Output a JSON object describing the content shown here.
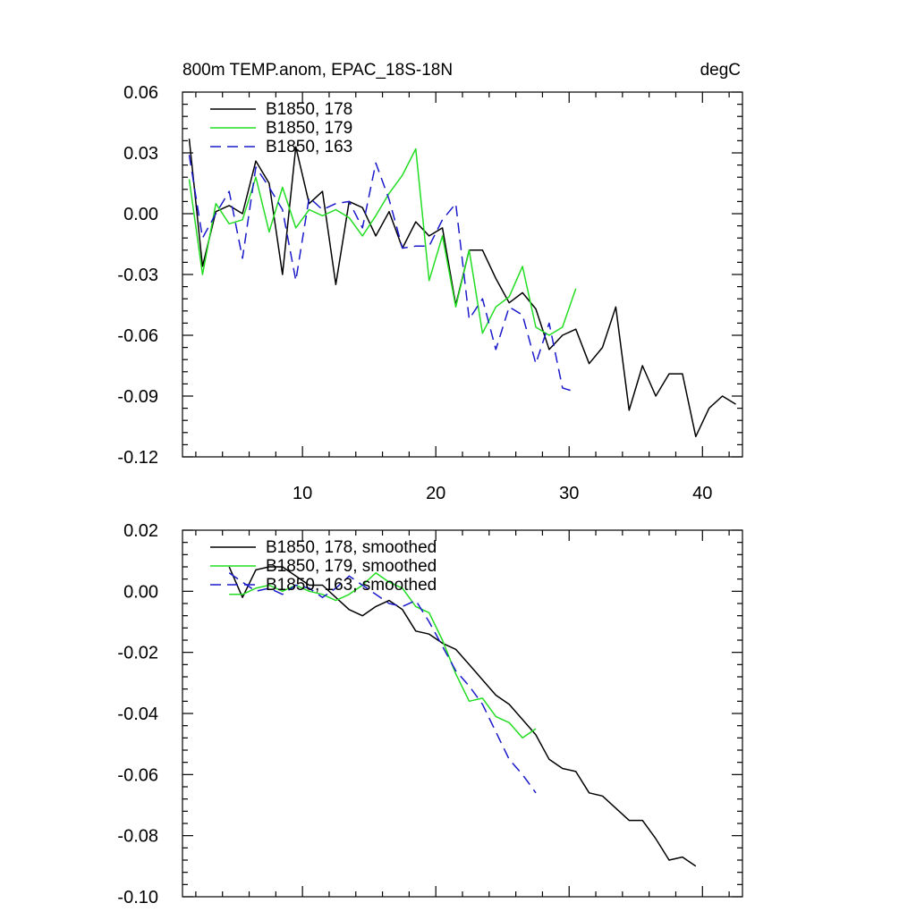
{
  "chart_data": [
    {
      "type": "line",
      "title": "800m TEMP.anom, EPAC_18S-18N",
      "units": "degC",
      "xlabel": "",
      "ylabel": "",
      "xlim": [
        1,
        43
      ],
      "ylim": [
        -0.12,
        0.06
      ],
      "x_ticks": [
        10,
        20,
        30,
        40
      ],
      "y_ticks": [
        0.06,
        0.03,
        0.0,
        -0.03,
        -0.06,
        -0.09,
        -0.12
      ],
      "y_tick_labels": [
        "0.06",
        "0.03",
        "0.00",
        "-0.03",
        "-0.06",
        "-0.09",
        "-0.12"
      ],
      "grid": false,
      "legend": "top-left",
      "series": [
        {
          "name": "B1850, 178",
          "color": "#000000",
          "dash": "solid",
          "x": [
            1.5,
            2.5,
            3.5,
            4.5,
            5.5,
            6.5,
            7.5,
            8.5,
            9.5,
            10.5,
            11.5,
            12.5,
            13.5,
            14.5,
            15.5,
            16.5,
            17.5,
            18.5,
            19.5,
            20.5,
            21.5,
            22.5,
            23.5,
            24.5,
            25.5,
            26.5,
            27.5,
            28.5,
            29.5,
            30.5,
            31.5,
            32.5,
            33.5,
            34.5,
            35.5,
            36.5,
            37.5,
            38.5,
            39.5,
            40.5,
            41.5,
            42.5
          ],
          "values": [
            0.037,
            -0.026,
            0.001,
            0.004,
            0.0,
            0.026,
            0.015,
            -0.03,
            0.033,
            0.005,
            0.011,
            -0.035,
            0.006,
            0.003,
            -0.011,
            0.001,
            -0.017,
            -0.004,
            -0.011,
            -0.007,
            -0.045,
            -0.018,
            -0.018,
            -0.032,
            -0.044,
            -0.039,
            -0.047,
            -0.067,
            -0.06,
            -0.057,
            -0.074,
            -0.066,
            -0.046,
            -0.097,
            -0.075,
            -0.09,
            -0.079,
            -0.079,
            -0.11,
            -0.096,
            -0.09,
            -0.094
          ]
        },
        {
          "name": "B1850, 179",
          "color": "#22dd22",
          "dash": "solid",
          "x": [
            1.5,
            2.5,
            3.5,
            4.5,
            5.5,
            6.5,
            7.5,
            8.5,
            9.5,
            10.5,
            11.5,
            12.5,
            13.5,
            14.5,
            15.5,
            16.5,
            17.5,
            18.5,
            19.5,
            20.5,
            21.5,
            22.5,
            23.5,
            24.5,
            25.5,
            26.5,
            27.5,
            28.5,
            29.5,
            30.5
          ],
          "values": [
            0.017,
            -0.03,
            0.005,
            -0.005,
            -0.003,
            0.018,
            -0.009,
            0.013,
            -0.007,
            0.002,
            -0.001,
            0.002,
            -0.002,
            -0.011,
            -0.001,
            0.01,
            0.019,
            0.032,
            -0.033,
            -0.011,
            -0.046,
            -0.018,
            -0.059,
            -0.046,
            -0.041,
            -0.026,
            -0.056,
            -0.06,
            -0.056,
            -0.037
          ]
        },
        {
          "name": "B1850, 163",
          "color": "#1a1acc",
          "dash": "dashed",
          "x": [
            1.5,
            2.5,
            3.5,
            4.5,
            5.5,
            6.5,
            7.5,
            8.5,
            9.5,
            10.5,
            11.5,
            12.5,
            13.5,
            14.5,
            15.5,
            16.5,
            17.5,
            18.5,
            19.5,
            20.5,
            21.5,
            22.5,
            23.5,
            24.5,
            25.5,
            26.5,
            27.5,
            28.5,
            29.5,
            30.5
          ],
          "values": [
            0.029,
            -0.012,
            0.0,
            0.011,
            -0.022,
            0.023,
            0.013,
            0.002,
            -0.033,
            0.008,
            0.002,
            0.005,
            0.006,
            -0.007,
            0.025,
            0.007,
            -0.017,
            -0.016,
            -0.016,
            -0.003,
            0.005,
            -0.052,
            -0.042,
            -0.067,
            -0.046,
            -0.05,
            -0.074,
            -0.054,
            -0.086,
            -0.088
          ]
        }
      ]
    },
    {
      "type": "line",
      "title": "",
      "xlabel": "",
      "ylabel": "",
      "xlim": [
        1,
        43
      ],
      "ylim": [
        -0.1,
        0.02
      ],
      "x_ticks": [
        10,
        20,
        30,
        40
      ],
      "y_ticks": [
        0.02,
        0.0,
        -0.02,
        -0.04,
        -0.06,
        -0.08,
        -0.1
      ],
      "y_tick_labels": [
        "0.02",
        "0.00",
        "-0.02",
        "-0.04",
        "-0.06",
        "-0.08",
        "-0.10"
      ],
      "grid": false,
      "legend": "top-left",
      "series": [
        {
          "name": "B1850, 178, smoothed",
          "color": "#000000",
          "dash": "solid",
          "x": [
            4.5,
            5.5,
            6.5,
            7.5,
            8.5,
            9.5,
            10.5,
            11.5,
            12.5,
            13.5,
            14.5,
            15.5,
            16.5,
            17.5,
            18.5,
            19.5,
            20.5,
            21.5,
            22.5,
            23.5,
            24.5,
            25.5,
            26.5,
            27.5,
            28.5,
            29.5,
            30.5,
            31.5,
            32.5,
            33.5,
            34.5,
            35.5,
            36.5,
            37.5,
            38.5,
            39.5
          ],
          "values": [
            0.008,
            -0.002,
            0.007,
            0.008,
            0.008,
            0.005,
            0.002,
            0.002,
            -0.002,
            -0.006,
            -0.008,
            -0.005,
            -0.003,
            -0.006,
            -0.013,
            -0.014,
            -0.017,
            -0.019,
            -0.024,
            -0.029,
            -0.034,
            -0.037,
            -0.042,
            -0.047,
            -0.055,
            -0.058,
            -0.059,
            -0.066,
            -0.067,
            -0.071,
            -0.075,
            -0.075,
            -0.081,
            -0.088,
            -0.087,
            -0.09
          ]
        },
        {
          "name": "B1850, 179, smoothed",
          "color": "#22dd22",
          "dash": "solid",
          "x": [
            4.5,
            5.5,
            6.5,
            7.5,
            8.5,
            9.5,
            10.5,
            11.5,
            12.5,
            13.5,
            14.5,
            15.5,
            16.5,
            17.5,
            18.5,
            19.5,
            20.5,
            21.5,
            22.5,
            23.5,
            24.5,
            25.5,
            26.5,
            27.5
          ],
          "values": [
            -0.001,
            -0.001,
            0.001,
            0.002,
            0.0,
            0.002,
            0.0,
            -0.001,
            -0.003,
            -0.001,
            0.002,
            0.006,
            0.003,
            0.001,
            -0.005,
            -0.007,
            -0.016,
            -0.027,
            -0.036,
            -0.035,
            -0.041,
            -0.043,
            -0.048,
            -0.045
          ]
        },
        {
          "name": "B1850, 163, smoothed",
          "color": "#1a1acc",
          "dash": "dashed",
          "x": [
            4.5,
            5.5,
            6.5,
            7.5,
            8.5,
            9.5,
            10.5,
            11.5,
            12.5,
            13.5,
            14.5,
            15.5,
            16.5,
            17.5,
            18.5,
            19.5,
            20.5,
            21.5,
            22.5,
            23.5,
            24.5,
            25.5,
            26.5,
            27.5
          ],
          "values": [
            0.006,
            0.003,
            0.0,
            0.001,
            -0.001,
            0.002,
            0.001,
            -0.002,
            0.001,
            0.005,
            0.002,
            -0.001,
            -0.004,
            -0.005,
            -0.003,
            -0.01,
            -0.018,
            -0.026,
            -0.031,
            -0.037,
            -0.046,
            -0.055,
            -0.06,
            -0.066
          ]
        }
      ]
    }
  ]
}
